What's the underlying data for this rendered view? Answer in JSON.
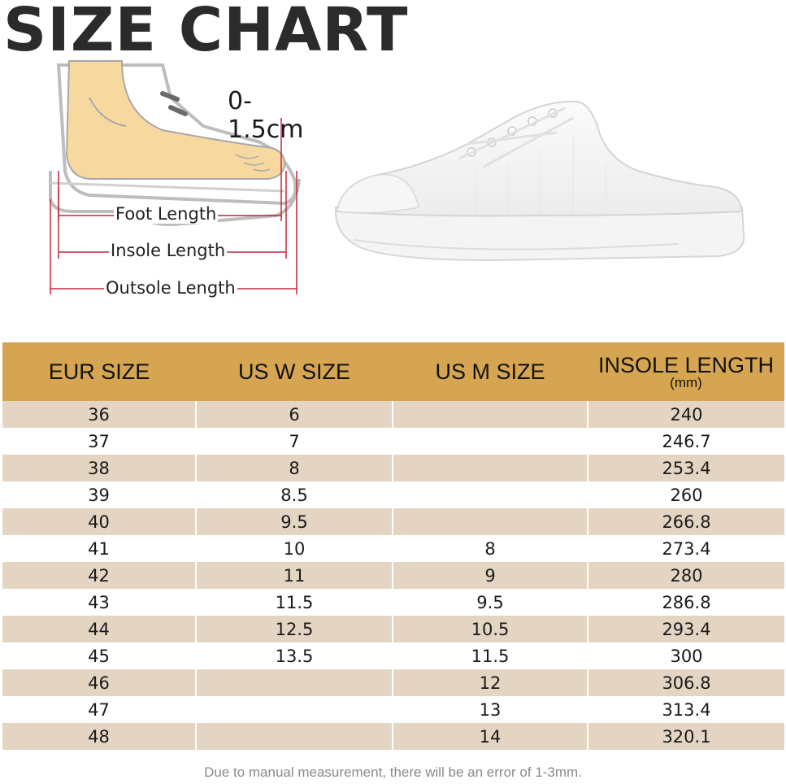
{
  "title": "SIZE CHART",
  "diagram": {
    "tolerance": "0-1.5cm",
    "foot_length": "Foot Length",
    "insole_length": "Insole Length",
    "outsole_length": "Outsole Length"
  },
  "table": {
    "headers": {
      "eur": "EUR SIZE",
      "us_w": "US W SIZE",
      "us_m": "US M SIZE",
      "insole": "INSOLE  LENGTH",
      "insole_unit": "(mm)"
    },
    "rows": [
      {
        "eur": "36",
        "us_w": "6",
        "us_m": "",
        "insole": "240"
      },
      {
        "eur": "37",
        "us_w": "7",
        "us_m": "",
        "insole": "246.7"
      },
      {
        "eur": "38",
        "us_w": "8",
        "us_m": "",
        "insole": "253.4"
      },
      {
        "eur": "39",
        "us_w": "8.5",
        "us_m": "",
        "insole": "260"
      },
      {
        "eur": "40",
        "us_w": "9.5",
        "us_m": "",
        "insole": "266.8"
      },
      {
        "eur": "41",
        "us_w": "10",
        "us_m": "8",
        "insole": "273.4"
      },
      {
        "eur": "42",
        "us_w": "11",
        "us_m": "9",
        "insole": "280"
      },
      {
        "eur": "43",
        "us_w": "11.5",
        "us_m": "9.5",
        "insole": "286.8"
      },
      {
        "eur": "44",
        "us_w": "12.5",
        "us_m": "10.5",
        "insole": "293.4"
      },
      {
        "eur": "45",
        "us_w": "13.5",
        "us_m": "11.5",
        "insole": "300"
      },
      {
        "eur": "46",
        "us_w": "",
        "us_m": "12",
        "insole": "306.8"
      },
      {
        "eur": "47",
        "us_w": "",
        "us_m": "13",
        "insole": "313.4"
      },
      {
        "eur": "48",
        "us_w": "",
        "us_m": "14",
        "insole": "320.1"
      }
    ]
  },
  "note": "Due to manual measurement, there will be an error of 1-3mm.",
  "colors": {
    "header_bg": "#d6a552",
    "row_shade": "#e4d5c3",
    "measure_line": "#c0283c",
    "foot_skin": "#f7d9a0"
  }
}
